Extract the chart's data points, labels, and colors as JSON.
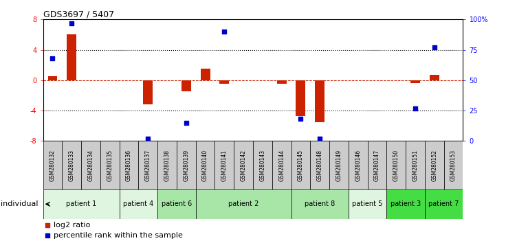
{
  "title": "GDS3697 / 5407",
  "samples": [
    "GSM280132",
    "GSM280133",
    "GSM280134",
    "GSM280135",
    "GSM280136",
    "GSM280137",
    "GSM280138",
    "GSM280139",
    "GSM280140",
    "GSM280141",
    "GSM280142",
    "GSM280143",
    "GSM280144",
    "GSM280145",
    "GSM280148",
    "GSM280149",
    "GSM280146",
    "GSM280147",
    "GSM280150",
    "GSM280151",
    "GSM280152",
    "GSM280153"
  ],
  "log2_ratio": [
    0.5,
    6.0,
    0.0,
    0.0,
    0.0,
    -3.2,
    0.0,
    -1.5,
    1.5,
    -0.5,
    0.0,
    0.0,
    -0.5,
    -4.7,
    -5.5,
    0.0,
    0.0,
    0.0,
    0.0,
    -0.4,
    0.7,
    0.0
  ],
  "percentile": [
    68,
    97,
    null,
    null,
    null,
    2,
    null,
    15,
    null,
    90,
    null,
    null,
    null,
    18,
    2,
    null,
    null,
    null,
    null,
    27,
    77,
    null
  ],
  "patients": [
    {
      "label": "patient 1",
      "start": 0,
      "end": 4,
      "color": "#e0f5e0"
    },
    {
      "label": "patient 4",
      "start": 4,
      "end": 6,
      "color": "#e0f5e0"
    },
    {
      "label": "patient 6",
      "start": 6,
      "end": 8,
      "color": "#a8e6a8"
    },
    {
      "label": "patient 2",
      "start": 8,
      "end": 13,
      "color": "#a8e6a8"
    },
    {
      "label": "patient 8",
      "start": 13,
      "end": 16,
      "color": "#a8e6a8"
    },
    {
      "label": "patient 5",
      "start": 16,
      "end": 18,
      "color": "#e0f5e0"
    },
    {
      "label": "patient 3",
      "start": 18,
      "end": 20,
      "color": "#44dd44"
    },
    {
      "label": "patient 7",
      "start": 20,
      "end": 22,
      "color": "#44dd44"
    }
  ],
  "ylim": [
    -8,
    8
  ],
  "yticks_left": [
    -8,
    -4,
    0,
    4,
    8
  ],
  "yticks_right": [
    0,
    25,
    50,
    75,
    100
  ],
  "yticks_right_labels": [
    "0",
    "25",
    "50",
    "75",
    "100%"
  ],
  "hline_dotted": [
    -4,
    4
  ],
  "hline_dashed_red": 0,
  "bar_color": "#cc2200",
  "dot_color": "#0000cc",
  "plot_bg_color": "#ffffff",
  "sample_bg_color": "#cccccc",
  "legend_log2_color": "#cc2200",
  "legend_pct_color": "#0000cc"
}
